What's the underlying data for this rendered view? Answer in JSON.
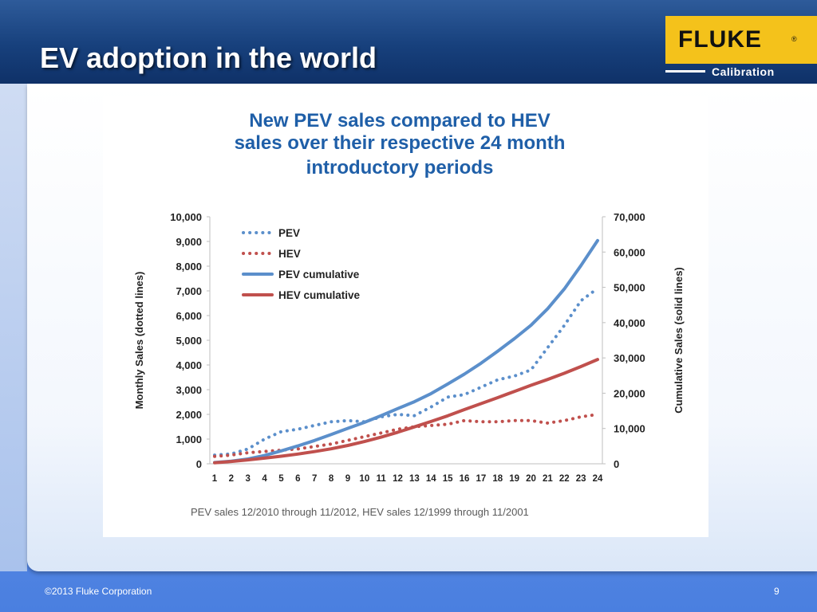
{
  "slide": {
    "title": "EV adoption in the world",
    "logo_text": "FLUKE",
    "logo_reg": "®",
    "logo_sub": "Calibration",
    "footer_copyright": "©2013 Fluke Corporation",
    "page_number": "9"
  },
  "colors": {
    "pev": "#5b8fcb",
    "hev": "#c0504d",
    "title": "#1f5fa8",
    "logo_bg": "#f4c21b"
  },
  "chart_data": {
    "type": "line",
    "title_lines": [
      "New PEV sales compared to HEV",
      "sales over their respective 24 month",
      "introductory periods"
    ],
    "ylabel_left": "Monthly Sales (dotted lines)",
    "ylabel_right": "Cumulative Sales (solid lines)",
    "note": "PEV sales 12/2010 through 11/2012, HEV sales 12/1999 through 11/2001",
    "x": [
      1,
      2,
      3,
      4,
      5,
      6,
      7,
      8,
      9,
      10,
      11,
      12,
      13,
      14,
      15,
      16,
      17,
      18,
      19,
      20,
      21,
      22,
      23,
      24
    ],
    "ylim_left": [
      0,
      10000
    ],
    "ylim_right": [
      0,
      70000
    ],
    "yticks_left": [
      "0",
      "1,000",
      "2,000",
      "3,000",
      "4,000",
      "5,000",
      "6,000",
      "7,000",
      "8,000",
      "9,000",
      "10,000"
    ],
    "yticks_right": [
      "0",
      "10,000",
      "20,000",
      "30,000",
      "40,000",
      "50,000",
      "60,000",
      "70,000"
    ],
    "series": [
      {
        "name": "PEV",
        "axis": "left",
        "style": "dotted",
        "color": "#5b8fcb",
        "values": [
          350,
          400,
          600,
          1000,
          1300,
          1400,
          1550,
          1700,
          1750,
          1700,
          1900,
          2000,
          1950,
          2300,
          2700,
          2800,
          3100,
          3400,
          3550,
          3800,
          4700,
          5600,
          6600,
          7100
        ]
      },
      {
        "name": "HEV",
        "axis": "left",
        "style": "dotted",
        "color": "#c0504d",
        "values": [
          300,
          350,
          450,
          500,
          550,
          600,
          700,
          800,
          950,
          1100,
          1250,
          1400,
          1500,
          1550,
          1600,
          1750,
          1700,
          1700,
          1750,
          1750,
          1650,
          1750,
          1900,
          2000
        ]
      },
      {
        "name": "PEV cumulative",
        "axis": "right",
        "style": "solid",
        "color": "#5b8fcb",
        "values": [
          350,
          750,
          1350,
          2350,
          3650,
          5050,
          6600,
          8300,
          10050,
          11750,
          13650,
          15650,
          17600,
          19900,
          22600,
          25400,
          28500,
          31900,
          35450,
          39250,
          43950,
          49550,
          56150,
          63250
        ]
      },
      {
        "name": "HEV cumulative",
        "axis": "right",
        "style": "solid",
        "color": "#c0504d",
        "values": [
          300,
          650,
          1100,
          1600,
          2150,
          2750,
          3450,
          4250,
          5200,
          6300,
          7550,
          8950,
          10450,
          12000,
          13600,
          15350,
          17050,
          18750,
          20500,
          22250,
          23900,
          25650,
          27550,
          29550
        ]
      }
    ],
    "legend": [
      "PEV",
      "HEV",
      "PEV cumulative",
      "HEV cumulative"
    ],
    "legend_position": "top-left",
    "grid": false
  }
}
